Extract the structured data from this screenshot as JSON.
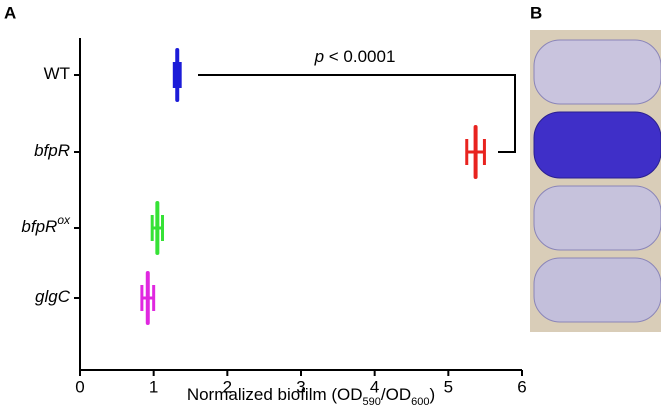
{
  "chart_data": {
    "type": "dot",
    "panel_labels": [
      "A",
      "B"
    ],
    "categories": [
      [
        "WT"
      ],
      [
        "bfpR"
      ],
      [
        "bfpR",
        "ox"
      ],
      [
        "glgC"
      ]
    ],
    "category_italic": [
      false,
      true,
      true,
      true
    ],
    "values": [
      1.32,
      5.37,
      1.05,
      0.92
    ],
    "errors": [
      0.04,
      0.12,
      0.07,
      0.08
    ],
    "colors": [
      "#1c1cd8",
      "#e8231f",
      "#36e236",
      "#e028e0"
    ],
    "xlabel": [
      "Normalized biofilm (OD",
      "590",
      "/OD",
      "600",
      ")"
    ],
    "xlabel_subscript": [
      false,
      true,
      false,
      true,
      false
    ],
    "annotation": [
      "p",
      " < 0.0001"
    ],
    "annotation_italic": [
      true,
      false
    ],
    "xlim": [
      0,
      6
    ],
    "xticks": [
      0,
      1,
      2,
      3,
      4,
      5,
      6
    ]
  }
}
